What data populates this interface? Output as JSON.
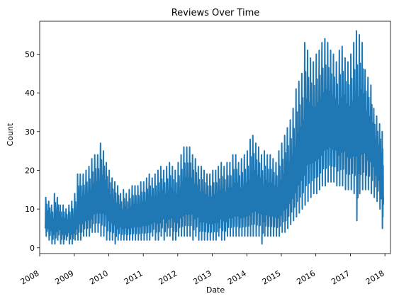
{
  "chart_data": {
    "type": "line",
    "title": "Reviews Over Time",
    "xlabel": "Date",
    "ylabel": "Count",
    "xlim": [
      "2008-01-01",
      "2018-03-01"
    ],
    "ylim": [
      -1.5,
      58.5
    ],
    "x_tick_labels": [
      "2008",
      "2009",
      "2010",
      "2011",
      "2012",
      "2013",
      "2014",
      "2015",
      "2016",
      "2017",
      "2018"
    ],
    "y_tick_labels": [
      "0",
      "10",
      "20",
      "30",
      "40",
      "50"
    ],
    "grid": false,
    "legend": "none",
    "line_color": "#1f77b4",
    "series": [
      {
        "x": [
          "2008-03-01",
          "2008-04-01",
          "2008-05-01",
          "2008-06-01",
          "2008-07-01",
          "2008-08-01",
          "2008-09-01",
          "2008-10-01",
          "2008-11-01",
          "2008-12-01",
          "2009-01-01",
          "2009-02-01",
          "2009-03-01",
          "2009-04-01",
          "2009-05-01",
          "2009-06-01",
          "2009-07-01",
          "2009-08-01",
          "2009-09-01",
          "2009-10-01",
          "2009-11-01",
          "2009-12-01",
          "2010-01-01",
          "2010-02-01",
          "2010-03-01",
          "2010-04-01",
          "2010-05-01",
          "2010-06-01",
          "2010-07-01",
          "2010-08-01",
          "2010-09-01",
          "2010-10-01",
          "2010-11-01",
          "2010-12-01",
          "2011-01-01",
          "2011-02-01",
          "2011-03-01",
          "2011-04-01",
          "2011-05-01",
          "2011-06-01",
          "2011-07-01",
          "2011-08-01",
          "2011-09-01",
          "2011-10-01",
          "2011-11-01",
          "2011-12-01",
          "2012-01-01",
          "2012-02-01",
          "2012-03-01",
          "2012-04-01",
          "2012-05-01",
          "2012-06-01",
          "2012-07-01",
          "2012-08-01",
          "2012-09-01",
          "2012-10-01",
          "2012-11-01",
          "2012-12-01",
          "2013-01-01",
          "2013-02-01",
          "2013-03-01",
          "2013-04-01",
          "2013-05-01",
          "2013-06-01",
          "2013-07-01",
          "2013-08-01",
          "2013-09-01",
          "2013-10-01",
          "2013-11-01",
          "2013-12-01",
          "2014-01-01",
          "2014-02-01",
          "2014-03-01",
          "2014-04-01",
          "2014-05-01",
          "2014-06-01",
          "2014-07-01",
          "2014-08-01",
          "2014-09-01",
          "2014-10-01",
          "2014-11-01",
          "2014-12-01",
          "2015-01-01",
          "2015-02-01",
          "2015-03-01",
          "2015-04-01",
          "2015-05-01",
          "2015-06-01",
          "2015-07-01",
          "2015-08-01",
          "2015-09-01",
          "2015-10-01",
          "2015-11-01",
          "2015-12-01",
          "2016-01-01",
          "2016-02-01",
          "2016-03-01",
          "2016-04-01",
          "2016-05-01",
          "2016-06-01",
          "2016-07-01",
          "2016-08-01",
          "2016-09-01",
          "2016-10-01",
          "2016-11-01",
          "2016-12-01",
          "2017-01-01",
          "2017-02-01",
          "2017-03-01",
          "2017-04-01",
          "2017-05-01",
          "2017-06-01",
          "2017-07-01",
          "2017-08-01",
          "2017-09-01",
          "2017-10-01",
          "2017-11-01",
          "2017-12-01"
        ],
        "low": [
          3,
          2,
          1,
          1,
          2,
          1,
          1,
          2,
          1,
          1,
          2,
          2,
          2,
          3,
          3,
          3,
          4,
          4,
          4,
          3,
          3,
          2,
          2,
          2,
          1,
          2,
          2,
          2,
          2,
          2,
          2,
          2,
          2,
          2,
          2,
          2,
          2,
          3,
          2,
          2,
          3,
          2,
          3,
          3,
          2,
          2,
          3,
          3,
          3,
          3,
          3,
          2,
          3,
          2,
          2,
          2,
          2,
          2,
          2,
          2,
          3,
          2,
          2,
          3,
          3,
          3,
          3,
          3,
          3,
          3,
          3,
          3,
          3,
          3,
          3,
          1,
          3,
          3,
          3,
          3,
          3,
          3,
          4,
          4,
          5,
          6,
          7,
          8,
          9,
          10,
          11,
          12,
          13,
          14,
          14,
          15,
          16,
          16,
          17,
          17,
          17,
          16,
          16,
          16,
          15,
          15,
          15,
          14,
          7,
          14,
          15,
          15,
          15,
          14,
          13,
          12,
          10,
          5
        ],
        "high": [
          13,
          12,
          11,
          14,
          13,
          11,
          11,
          10,
          11,
          12,
          14,
          19,
          19,
          19,
          20,
          21,
          23,
          24,
          24,
          27,
          25,
          22,
          20,
          18,
          17,
          16,
          14,
          15,
          14,
          15,
          16,
          16,
          16,
          17,
          17,
          18,
          19,
          18,
          19,
          20,
          21,
          20,
          21,
          22,
          21,
          20,
          22,
          24,
          26,
          26,
          26,
          24,
          23,
          21,
          21,
          20,
          19,
          19,
          20,
          20,
          21,
          22,
          21,
          22,
          22,
          24,
          24,
          22,
          23,
          24,
          25,
          28,
          29,
          27,
          26,
          24,
          25,
          24,
          24,
          23,
          22,
          25,
          27,
          29,
          31,
          33,
          36,
          41,
          43,
          45,
          53,
          51,
          49,
          48,
          50,
          51,
          53,
          54,
          53,
          51,
          50,
          48,
          51,
          52,
          49,
          48,
          50,
          53,
          56,
          55,
          53,
          46,
          44,
          42,
          36,
          34,
          32,
          30
        ],
        "close": [
          5,
          8,
          6,
          9,
          7,
          6,
          5,
          6,
          7,
          8,
          9,
          12,
          11,
          12,
          13,
          13,
          14,
          15,
          16,
          16,
          15,
          13,
          11,
          10,
          9,
          8,
          7,
          8,
          8,
          9,
          9,
          10,
          10,
          10,
          11,
          12,
          12,
          12,
          12,
          13,
          13,
          12,
          13,
          13,
          12,
          12,
          13,
          14,
          15,
          14,
          13,
          12,
          12,
          11,
          11,
          10,
          10,
          10,
          11,
          11,
          12,
          12,
          11,
          12,
          12,
          13,
          13,
          12,
          13,
          13,
          13,
          14,
          15,
          14,
          14,
          13,
          13,
          13,
          13,
          13,
          13,
          14,
          16,
          19,
          20,
          21,
          23,
          25,
          26,
          27,
          29,
          30,
          30,
          29,
          30,
          31,
          33,
          34,
          34,
          33,
          32,
          31,
          32,
          31,
          30,
          29,
          30,
          31,
          32,
          31,
          30,
          28,
          28,
          27,
          26,
          24,
          22,
          13
        ]
      }
    ]
  }
}
